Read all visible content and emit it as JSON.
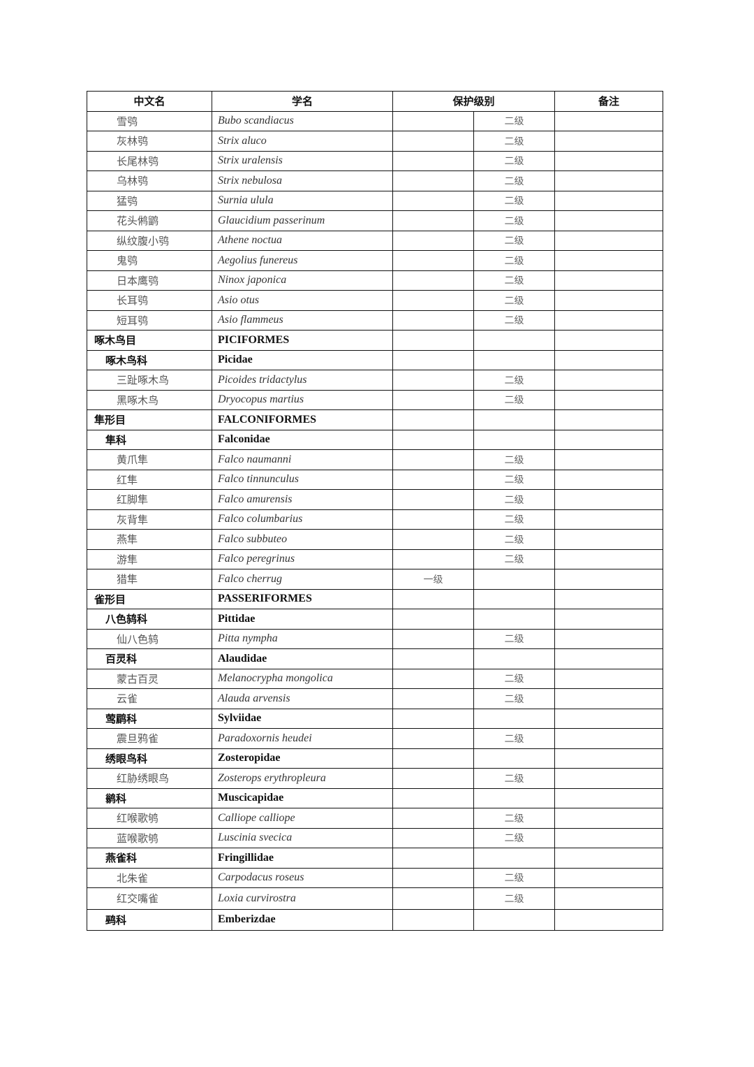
{
  "headers": {
    "cn": "中文名",
    "sci": "学名",
    "level": "保护级别",
    "note": "备注"
  },
  "rows": [
    {
      "type": "species",
      "cn": "雪鸮",
      "sci": "Bubo scandiacus",
      "level1": "",
      "level2": "二级",
      "note": ""
    },
    {
      "type": "species",
      "cn": "灰林鸮",
      "sci": "Strix aluco",
      "level1": "",
      "level2": "二级",
      "note": ""
    },
    {
      "type": "species",
      "cn": "长尾林鸮",
      "sci": "Strix uralensis",
      "level1": "",
      "level2": "二级",
      "note": ""
    },
    {
      "type": "species",
      "cn": "乌林鸮",
      "sci": "Strix nebulosa",
      "level1": "",
      "level2": "二级",
      "note": ""
    },
    {
      "type": "species",
      "cn": "猛鸮",
      "sci": "Surnia ulula",
      "level1": "",
      "level2": "二级",
      "note": ""
    },
    {
      "type": "species",
      "cn": "花头鸺鹠",
      "sci": "Glaucidium passerinum",
      "level1": "",
      "level2": "二级",
      "note": ""
    },
    {
      "type": "species",
      "cn": "纵纹腹小鸮",
      "sci": "Athene noctua",
      "level1": "",
      "level2": "二级",
      "note": ""
    },
    {
      "type": "species",
      "cn": "鬼鸮",
      "sci": "Aegolius funereus",
      "level1": "",
      "level2": "二级",
      "note": ""
    },
    {
      "type": "species",
      "cn": "日本鹰鸮",
      "sci": "Ninox japonica",
      "level1": "",
      "level2": "二级",
      "note": ""
    },
    {
      "type": "species",
      "cn": "长耳鸮",
      "sci": "Asio otus",
      "level1": "",
      "level2": "二级",
      "note": ""
    },
    {
      "type": "species",
      "cn": "短耳鸮",
      "sci": "Asio flammeus",
      "level1": "",
      "level2": "二级",
      "note": ""
    },
    {
      "type": "order",
      "cn": "啄木鸟目",
      "sci": "PICIFORMES",
      "level1": "",
      "level2": "",
      "note": ""
    },
    {
      "type": "family",
      "cn": "啄木鸟科",
      "sci": "Picidae",
      "level1": "",
      "level2": "",
      "note": ""
    },
    {
      "type": "species",
      "cn": "三趾啄木鸟",
      "sci": "Picoides tridactylus",
      "level1": "",
      "level2": "二级",
      "note": ""
    },
    {
      "type": "species",
      "cn": "黑啄木鸟",
      "sci": "Dryocopus martius",
      "level1": "",
      "level2": "二级",
      "note": ""
    },
    {
      "type": "order",
      "cn": "隼形目",
      "sci": "FALCONIFORMES",
      "level1": "",
      "level2": "",
      "note": ""
    },
    {
      "type": "family",
      "cn": "隼科",
      "sci": "Falconidae",
      "level1": "",
      "level2": "",
      "note": ""
    },
    {
      "type": "species",
      "cn": "黄爪隼",
      "sci": "Falco naumanni",
      "level1": "",
      "level2": "二级",
      "note": ""
    },
    {
      "type": "species",
      "cn": "红隼",
      "sci": "Falco tinnunculus",
      "level1": "",
      "level2": "二级",
      "note": ""
    },
    {
      "type": "species",
      "cn": "红脚隼",
      "sci": "Falco amurensis",
      "level1": "",
      "level2": "二级",
      "note": ""
    },
    {
      "type": "species",
      "cn": "灰背隼",
      "sci": "Falco columbarius",
      "level1": "",
      "level2": "二级",
      "note": ""
    },
    {
      "type": "species",
      "cn": "燕隼",
      "sci": "Falco subbuteo",
      "level1": "",
      "level2": "二级",
      "note": ""
    },
    {
      "type": "species",
      "cn": "游隼",
      "sci": "Falco peregrinus",
      "level1": "",
      "level2": "二级",
      "note": ""
    },
    {
      "type": "species",
      "cn": "猎隼",
      "sci": "Falco cherrug",
      "level1": "一级",
      "level2": "",
      "note": ""
    },
    {
      "type": "order",
      "cn": "雀形目",
      "sci": "PASSERIFORMES",
      "level1": "",
      "level2": "",
      "note": ""
    },
    {
      "type": "family",
      "cn": "八色鸫科",
      "sci": "Pittidae",
      "level1": "",
      "level2": "",
      "note": ""
    },
    {
      "type": "species",
      "cn": "仙八色鸫",
      "sci": "Pitta nympha",
      "level1": "",
      "level2": "二级",
      "note": ""
    },
    {
      "type": "family",
      "cn": "百灵科",
      "sci": "Alaudidae",
      "level1": "",
      "level2": "",
      "note": ""
    },
    {
      "type": "species",
      "cn": "蒙古百灵",
      "sci": "Melanocrypha mongolica",
      "level1": "",
      "level2": "二级",
      "note": ""
    },
    {
      "type": "species",
      "cn": "云雀",
      "sci": "Alauda arvensis",
      "level1": "",
      "level2": "二级",
      "note": ""
    },
    {
      "type": "family",
      "cn": "莺鹛科",
      "sci": "Sylviidae",
      "level1": "",
      "level2": "",
      "note": ""
    },
    {
      "type": "species",
      "cn": "震旦鸦雀",
      "sci": "Paradoxornis heudei",
      "level1": "",
      "level2": "二级",
      "note": ""
    },
    {
      "type": "family",
      "cn": "绣眼鸟科",
      "sci": "Zosteropidae",
      "level1": "",
      "level2": "",
      "note": ""
    },
    {
      "type": "species",
      "cn": "红胁绣眼鸟",
      "sci": "Zosterops erythropleura",
      "level1": "",
      "level2": "二级",
      "note": ""
    },
    {
      "type": "family",
      "cn": "鹟科",
      "sci": "Muscicapidae",
      "level1": "",
      "level2": "",
      "note": ""
    },
    {
      "type": "species",
      "cn": "红喉歌鸲",
      "sci": "Calliope calliope",
      "level1": "",
      "level2": "二级",
      "note": ""
    },
    {
      "type": "species",
      "cn": "蓝喉歌鸲",
      "sci": "Luscinia svecica",
      "level1": "",
      "level2": "二级",
      "note": ""
    },
    {
      "type": "family",
      "cn": "燕雀科",
      "sci": "Fringillidae",
      "level1": "",
      "level2": "",
      "note": ""
    },
    {
      "type": "species",
      "cn": "北朱雀",
      "sci": "Carpodacus roseus",
      "level1": "",
      "level2": "二级",
      "note": ""
    },
    {
      "type": "species",
      "cn": "红交嘴雀",
      "sci": "Loxia curvirostra",
      "level1": "",
      "level2": "二级",
      "note": ""
    },
    {
      "type": "family",
      "cn": "鹀科",
      "sci": "Emberizdae",
      "level1": "",
      "level2": "",
      "note": ""
    }
  ]
}
